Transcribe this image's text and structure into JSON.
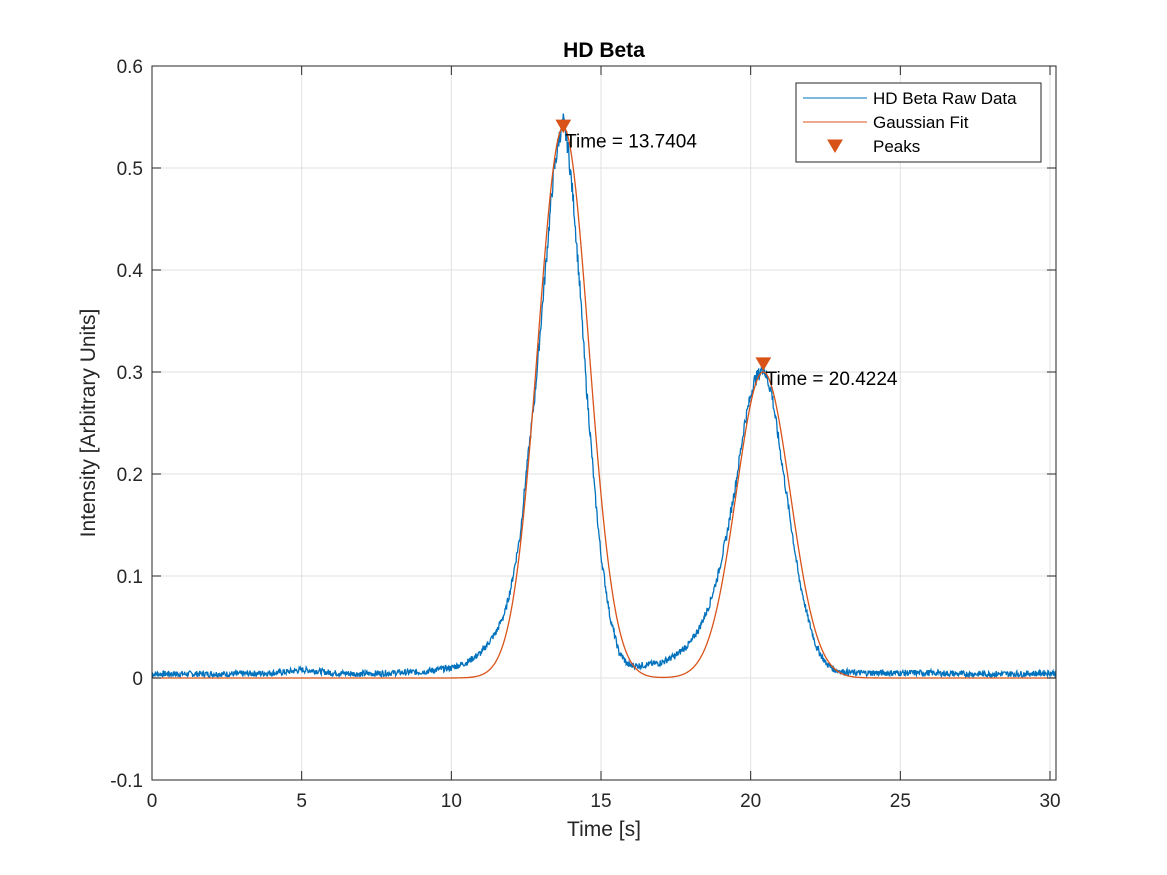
{
  "chart_data": {
    "type": "line",
    "title": "HD Beta",
    "xlabel": "Time [s]",
    "ylabel": "Intensity [Arbitrary Units]",
    "xlim": [
      0,
      30.2
    ],
    "ylim": [
      -0.1,
      0.6
    ],
    "xticks": [
      0,
      5,
      10,
      15,
      20,
      25,
      30
    ],
    "xtick_labels": [
      "0",
      "5",
      "10",
      "15",
      "20",
      "25",
      "30"
    ],
    "yticks": [
      -0.1,
      0,
      0.1,
      0.2,
      0.3,
      0.4,
      0.5,
      0.6
    ],
    "ytick_labels": [
      "-0.1",
      "0",
      "0.1",
      "0.2",
      "0.3",
      "0.4",
      "0.5",
      "0.6"
    ],
    "grid": true,
    "legend_position": "top-right",
    "series": [
      {
        "name": "HD Beta Raw Data",
        "color": "#0072BD",
        "x": [
          0,
          1,
          2,
          3,
          4,
          4.5,
          5,
          5.5,
          6,
          7,
          8,
          9,
          9.5,
          10,
          10.5,
          11,
          11.5,
          11.8,
          12,
          12.3,
          12.5,
          12.8,
          13,
          13.2,
          13.4,
          13.6,
          13.74,
          13.9,
          14.1,
          14.3,
          14.5,
          14.8,
          15,
          15.3,
          15.6,
          15.9,
          16.2,
          16.5,
          17,
          17.5,
          18,
          18.3,
          18.6,
          18.9,
          19.2,
          19.5,
          19.8,
          20.1,
          20.42,
          20.7,
          21,
          21.3,
          21.6,
          21.9,
          22.2,
          22.5,
          22.8,
          23.1,
          23.5,
          24,
          25,
          26,
          27,
          28,
          29,
          30,
          30.2
        ],
        "y": [
          0.004,
          0.004,
          0.004,
          0.004,
          0.005,
          0.006,
          0.008,
          0.007,
          0.005,
          0.004,
          0.005,
          0.006,
          0.008,
          0.01,
          0.015,
          0.025,
          0.045,
          0.065,
          0.09,
          0.14,
          0.2,
          0.28,
          0.35,
          0.42,
          0.49,
          0.53,
          0.545,
          0.52,
          0.46,
          0.38,
          0.29,
          0.18,
          0.12,
          0.06,
          0.025,
          0.013,
          0.012,
          0.013,
          0.015,
          0.022,
          0.035,
          0.05,
          0.07,
          0.1,
          0.14,
          0.19,
          0.25,
          0.29,
          0.305,
          0.28,
          0.22,
          0.16,
          0.1,
          0.06,
          0.03,
          0.015,
          0.008,
          0.006,
          0.005,
          0.005,
          0.005,
          0.005,
          0.004,
          0.004,
          0.004,
          0.005,
          0.005
        ]
      },
      {
        "name": "Gaussian Fit",
        "color": "#D95319",
        "gaussians": [
          {
            "amplitude": 0.54,
            "center": 13.74,
            "sigma": 0.85
          },
          {
            "amplitude": 0.3,
            "center": 20.42,
            "sigma": 0.9
          }
        ]
      },
      {
        "name": "Peaks",
        "color": "#D95319",
        "marker": "down-triangle",
        "x": [
          13.7404,
          20.4224
        ],
        "y": [
          0.541,
          0.308
        ]
      }
    ],
    "annotations": [
      {
        "text": "Time = 13.7404",
        "x": 13.8,
        "y": 0.527
      },
      {
        "text": "Time = 20.4224",
        "x": 20.5,
        "y": 0.294
      }
    ]
  }
}
